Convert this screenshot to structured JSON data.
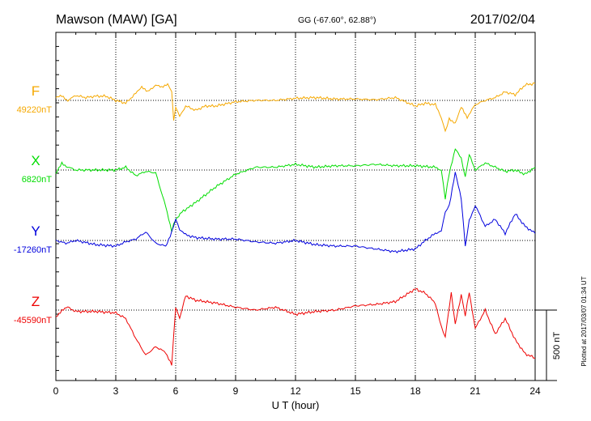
{
  "header": {
    "station": "Mawson (MAW)  [GA]",
    "coords": "GG (-67.60°,  62.88°)",
    "date": "2017/02/04"
  },
  "side_note": "Plotted at 2017/03/07 01:34 UT",
  "scale_label": "500 nT",
  "chart_data": {
    "type": "line",
    "xlabel": "U T (hour)",
    "xlim": [
      0,
      24
    ],
    "x_ticks": [
      "0",
      "3",
      "6",
      "9",
      "12",
      "15",
      "18",
      "21",
      "24"
    ],
    "y_units": "nT offset from baseline",
    "scale_bar_nT": 500,
    "grid": "dotted",
    "series": [
      {
        "name": "F",
        "baseline_label": "49220nT",
        "color": "#f5a800",
        "x": [
          0,
          0.3,
          0.6,
          1,
          1.5,
          2,
          2.5,
          3,
          3.5,
          4,
          4.3,
          4.6,
          5,
          5.3,
          5.6,
          5.8,
          5.9,
          6.0,
          6.2,
          6.5,
          7,
          7.5,
          8,
          9,
          10,
          11,
          12,
          13,
          14,
          15,
          16,
          17,
          18,
          18.5,
          19,
          19.3,
          19.5,
          19.7,
          20,
          20.3,
          20.6,
          21,
          21.5,
          22,
          22.5,
          23,
          23.5,
          24
        ],
        "values": [
          20,
          30,
          0,
          35,
          20,
          30,
          30,
          0,
          -20,
          50,
          100,
          60,
          110,
          90,
          120,
          60,
          -140,
          -50,
          -110,
          -40,
          -70,
          -40,
          -40,
          -10,
          0,
          0,
          15,
          20,
          10,
          10,
          5,
          20,
          -40,
          -20,
          -30,
          -120,
          -220,
          -130,
          -160,
          -50,
          -120,
          -30,
          0,
          20,
          60,
          40,
          110,
          120
        ]
      },
      {
        "name": "X",
        "baseline_label": "6820nT",
        "color": "#00dd00",
        "x": [
          0,
          0.3,
          0.6,
          1,
          2,
          3,
          3.5,
          4,
          4.5,
          5,
          5.5,
          5.8,
          6.0,
          6.3,
          7,
          8,
          9,
          10,
          11,
          12,
          13,
          14,
          15,
          16,
          17,
          18,
          19,
          19.3,
          19.5,
          19.7,
          20,
          20.3,
          20.5,
          20.7,
          21,
          21.5,
          22,
          22.5,
          23,
          23.5,
          24
        ],
        "values": [
          -30,
          50,
          20,
          0,
          0,
          0,
          20,
          -40,
          -10,
          -20,
          -260,
          -430,
          -350,
          -300,
          -230,
          -120,
          -30,
          20,
          20,
          40,
          20,
          30,
          30,
          40,
          30,
          30,
          20,
          0,
          -200,
          -20,
          150,
          80,
          -50,
          110,
          0,
          50,
          20,
          -10,
          0,
          -30,
          20
        ]
      },
      {
        "name": "Y",
        "baseline_label": "-17260nT",
        "color": "#0000dd",
        "x": [
          0,
          0.5,
          1,
          2,
          3,
          3.5,
          4,
          4.5,
          5,
          5.5,
          5.8,
          6.0,
          6.2,
          6.5,
          7,
          8,
          9,
          10,
          11,
          12,
          13,
          14,
          15,
          16,
          17,
          18,
          18.5,
          19,
          19.3,
          19.5,
          19.7,
          20,
          20.3,
          20.5,
          20.7,
          21,
          21.5,
          22,
          22.5,
          23,
          23.5,
          24
        ],
        "values": [
          0,
          -20,
          0,
          -30,
          -40,
          -10,
          10,
          60,
          -20,
          -40,
          60,
          150,
          80,
          40,
          20,
          10,
          10,
          -10,
          -20,
          0,
          -30,
          -40,
          -40,
          -60,
          -80,
          -60,
          0,
          50,
          70,
          200,
          250,
          480,
          300,
          -40,
          140,
          250,
          100,
          150,
          50,
          190,
          100,
          50
        ]
      },
      {
        "name": "Z",
        "baseline_label": "-45590nT",
        "color": "#ee0000",
        "x": [
          0,
          0.3,
          0.6,
          1,
          2,
          3,
          3.5,
          4,
          4.5,
          5,
          5.5,
          5.8,
          6.0,
          6.2,
          6.5,
          7,
          8,
          9,
          10,
          11,
          12,
          13,
          14,
          15,
          16,
          17,
          18,
          18.5,
          19,
          19.3,
          19.5,
          19.8,
          20,
          20.3,
          20.5,
          20.7,
          21,
          21.5,
          22,
          22.5,
          23,
          23.5,
          24
        ],
        "values": [
          -50,
          0,
          20,
          -10,
          -10,
          -20,
          -60,
          -200,
          -320,
          -260,
          -300,
          -390,
          20,
          -60,
          100,
          70,
          50,
          20,
          0,
          20,
          -30,
          -10,
          0,
          30,
          40,
          60,
          150,
          120,
          50,
          -120,
          -190,
          120,
          -100,
          110,
          -40,
          130,
          -130,
          0,
          -170,
          -60,
          -210,
          -310,
          -340
        ]
      }
    ]
  }
}
